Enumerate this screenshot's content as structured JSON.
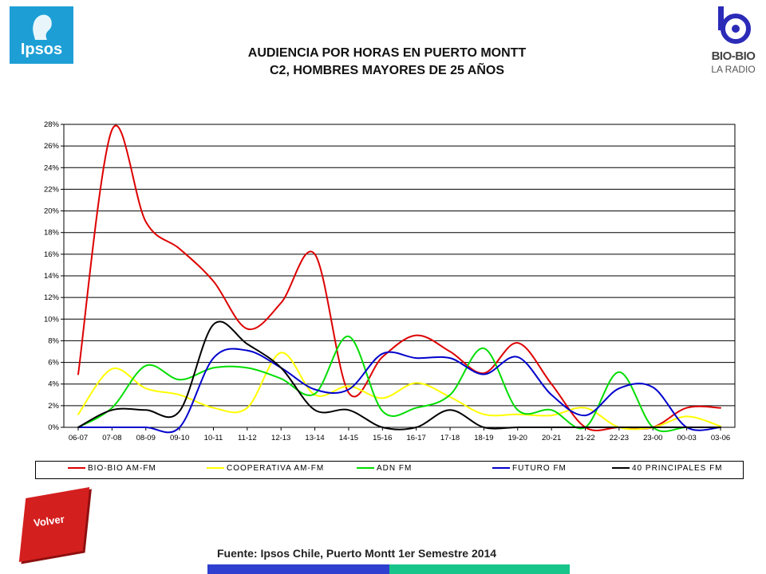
{
  "logos": {
    "ipsos_text": "Ipsos",
    "biobio_text": "BIO-BIO",
    "biobio_sub": "LA RADIO"
  },
  "title_line1": "AUDIENCIA POR HORAS EN PUERTO MONTT",
  "title_line2": "C2, HOMBRES MAYORES DE 25 AÑOS",
  "volver_label": "Volver",
  "source": "Fuente: Ipsos Chile, Puerto Montt 1er Semestre 2014",
  "colors": {
    "ipsos": "#1d9fd6",
    "volver": "#d41f1f",
    "bar_blue": "#2f3fcf",
    "bar_teal": "#17c48a"
  },
  "chart_data": {
    "type": "line",
    "title": "AUDIENCIA POR HORAS EN PUERTO MONTT C2, HOMBRES MAYORES DE 25 AÑOS",
    "xlabel": "",
    "ylabel": "",
    "ylim": [
      0,
      28
    ],
    "yticks": [
      "0%",
      "2%",
      "4%",
      "6%",
      "8%",
      "10%",
      "12%",
      "14%",
      "16%",
      "18%",
      "20%",
      "22%",
      "24%",
      "26%",
      "28%"
    ],
    "grid": "horizontal",
    "legend_position": "bottom",
    "categories": [
      "06-07",
      "07-08",
      "08-09",
      "09-10",
      "10-11",
      "11-12",
      "12-13",
      "13-14",
      "14-15",
      "15-16",
      "16-17",
      "17-18",
      "18-19",
      "19-20",
      "20-21",
      "21-22",
      "22-23",
      "23-00",
      "00-03",
      "03-06"
    ],
    "series": [
      {
        "name": "BIO-BIO AM-FM",
        "color": "#dd0000",
        "values": [
          4.9,
          27.5,
          19.0,
          16.5,
          13.5,
          9.1,
          11.5,
          16.0,
          3.2,
          6.5,
          8.5,
          7.0,
          5.0,
          7.8,
          4.0,
          0.0,
          0.0,
          0.0,
          1.8,
          1.8
        ]
      },
      {
        "name": "COOPERATIVA AM-FM",
        "color": "#ffff00",
        "values": [
          1.2,
          5.4,
          3.6,
          3.0,
          1.8,
          1.8,
          6.9,
          3.0,
          3.8,
          2.7,
          4.1,
          2.8,
          1.2,
          1.2,
          1.1,
          1.8,
          0.0,
          0.0,
          1.0,
          0.1
        ]
      },
      {
        "name": "ADN FM",
        "color": "#00dd00",
        "values": [
          0.0,
          1.8,
          5.7,
          4.4,
          5.5,
          5.5,
          4.5,
          3.1,
          8.4,
          1.5,
          1.8,
          3.0,
          7.3,
          1.6,
          1.6,
          0.0,
          5.1,
          0.0,
          0.0,
          0.0
        ]
      },
      {
        "name": "FUTURO FM",
        "color": "#0000cc",
        "values": [
          0.0,
          0.0,
          0.0,
          0.0,
          6.4,
          7.1,
          5.5,
          3.5,
          3.5,
          6.8,
          6.4,
          6.4,
          4.9,
          6.5,
          3.0,
          1.1,
          3.6,
          3.7,
          0.0,
          0.0
        ]
      },
      {
        "name": "40 PRINCIPALES FM",
        "color": "#000000",
        "values": [
          0.0,
          1.6,
          1.6,
          1.5,
          9.5,
          7.7,
          5.5,
          1.6,
          1.6,
          0.0,
          0.0,
          1.6,
          0.0,
          0.0,
          0.0,
          0.0,
          0.0,
          0.0,
          0.0,
          0.0
        ]
      }
    ]
  }
}
